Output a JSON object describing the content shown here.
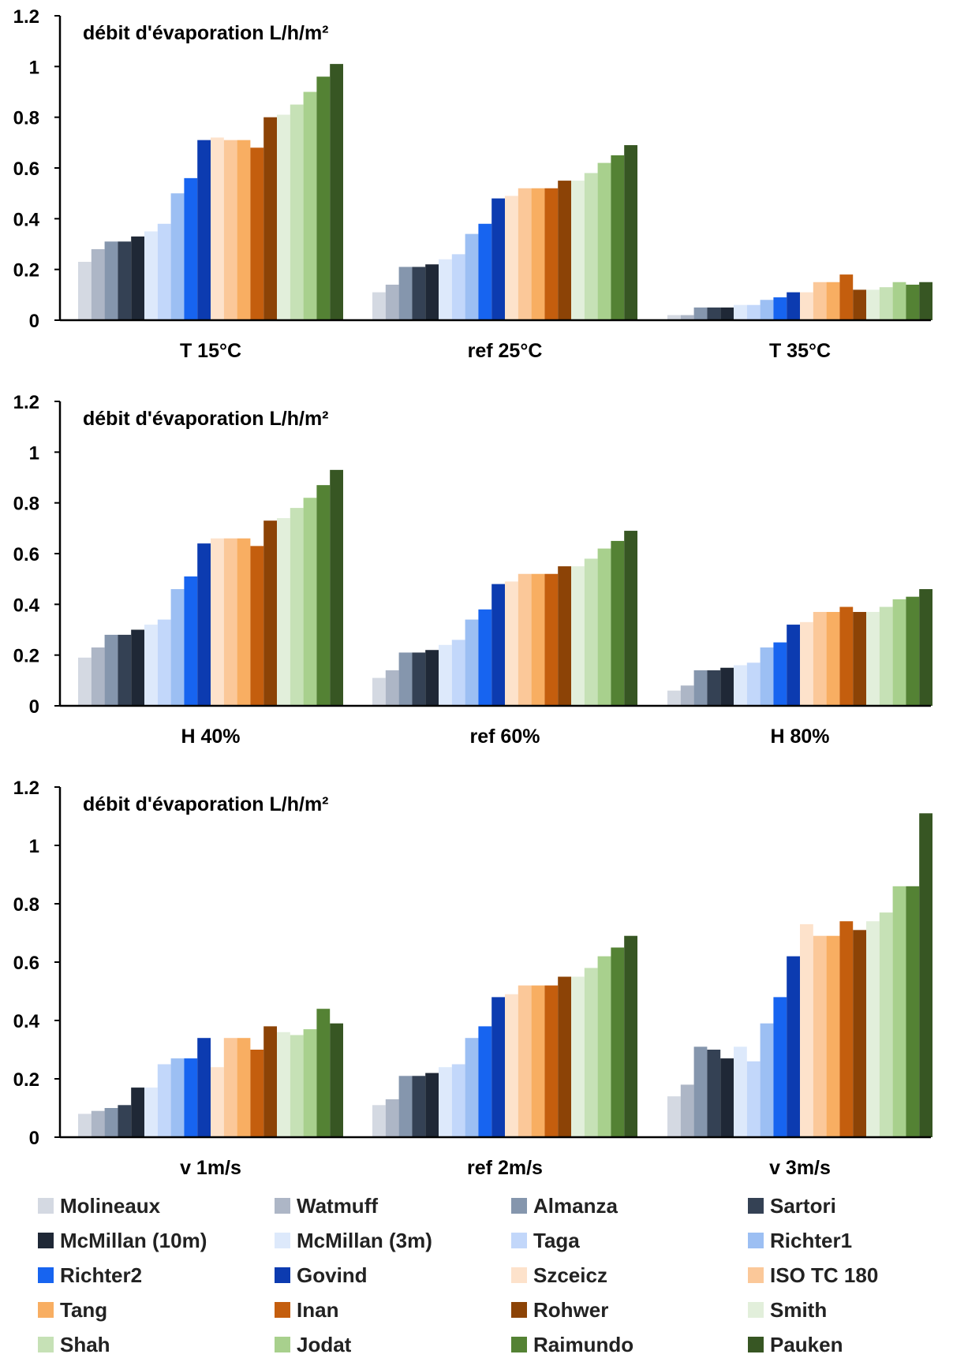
{
  "legend_series": [
    {
      "name": "Molineaux",
      "color": "#d4d9e2"
    },
    {
      "name": "Watmuff",
      "color": "#adb6c6"
    },
    {
      "name": "Almanza",
      "color": "#8596ad"
    },
    {
      "name": "Sartori",
      "color": "#344154"
    },
    {
      "name": "McMillan (10m)",
      "color": "#1f2836"
    },
    {
      "name": "McMillan (3m)",
      "color": "#dde9fb"
    },
    {
      "name": "Taga",
      "color": "#c2d7fa"
    },
    {
      "name": "Richter1",
      "color": "#9cbff3"
    },
    {
      "name": "Richter2",
      "color": "#1764f0"
    },
    {
      "name": "Govind",
      "color": "#0c3bb0"
    },
    {
      "name": "Szceicz",
      "color": "#fde2cb"
    },
    {
      "name": "ISO TC 180",
      "color": "#fbc899"
    },
    {
      "name": "Tang",
      "color": "#f8ae62"
    },
    {
      "name": "Inan",
      "color": "#c45e0e"
    },
    {
      "name": "Rohwer",
      "color": "#8c4306"
    },
    {
      "name": "Smith",
      "color": "#e2efdb"
    },
    {
      "name": "Shah",
      "color": "#c6e1b6"
    },
    {
      "name": "Jodat",
      "color": "#a8d08d"
    },
    {
      "name": "Raimundo",
      "color": "#548234"
    },
    {
      "name": "Pauken",
      "color": "#375623"
    }
  ],
  "chart_data": [
    {
      "type": "bar",
      "title": "débit d'évaporation L/h/m²",
      "categories": [
        "T 15°C",
        "ref 25°C",
        "T 35°C"
      ],
      "ylim": [
        0,
        1.2
      ],
      "yticks": [
        "0",
        "0.2",
        "0.4",
        "0.6",
        "0.8",
        "1",
        "1.2"
      ],
      "grid": false,
      "values_by_category": [
        [
          0.23,
          0.28,
          0.31,
          0.31,
          0.33,
          0.35,
          0.38,
          0.5,
          0.56,
          0.71,
          0.72,
          0.71,
          0.71,
          0.68,
          0.8,
          0.81,
          0.85,
          0.9,
          0.96,
          1.01
        ],
        [
          0.11,
          0.14,
          0.21,
          0.21,
          0.22,
          0.24,
          0.26,
          0.34,
          0.38,
          0.48,
          0.49,
          0.52,
          0.52,
          0.52,
          0.55,
          0.55,
          0.58,
          0.62,
          0.65,
          0.69
        ],
        [
          0.02,
          0.02,
          0.05,
          0.05,
          0.05,
          0.06,
          0.06,
          0.08,
          0.09,
          0.11,
          0.11,
          0.15,
          0.15,
          0.18,
          0.12,
          0.12,
          0.13,
          0.15,
          0.14,
          0.15
        ]
      ]
    },
    {
      "type": "bar",
      "title": "débit d'évaporation L/h/m²",
      "categories": [
        "H 40%",
        "ref 60%",
        "H 80%"
      ],
      "ylim": [
        0,
        1.2
      ],
      "yticks": [
        "0",
        "0.2",
        "0.4",
        "0.6",
        "0.8",
        "1",
        "1.2"
      ],
      "grid": false,
      "values_by_category": [
        [
          0.19,
          0.23,
          0.28,
          0.28,
          0.3,
          0.32,
          0.34,
          0.46,
          0.51,
          0.64,
          0.66,
          0.66,
          0.66,
          0.63,
          0.73,
          0.74,
          0.78,
          0.82,
          0.87,
          0.93
        ],
        [
          0.11,
          0.14,
          0.21,
          0.21,
          0.22,
          0.24,
          0.26,
          0.34,
          0.38,
          0.48,
          0.49,
          0.52,
          0.52,
          0.52,
          0.55,
          0.55,
          0.58,
          0.62,
          0.65,
          0.69
        ],
        [
          0.06,
          0.08,
          0.14,
          0.14,
          0.15,
          0.16,
          0.17,
          0.23,
          0.25,
          0.32,
          0.33,
          0.37,
          0.37,
          0.39,
          0.37,
          0.37,
          0.39,
          0.42,
          0.43,
          0.46
        ]
      ]
    },
    {
      "type": "bar",
      "title": "débit d'évaporation L/h/m²",
      "categories": [
        "v 1m/s",
        "ref 2m/s",
        "v 3m/s"
      ],
      "ylim": [
        0,
        1.2
      ],
      "yticks": [
        "0",
        "0.2",
        "0.4",
        "0.6",
        "0.8",
        "1",
        "1.2"
      ],
      "grid": false,
      "values_by_category": [
        [
          0.08,
          0.09,
          0.1,
          0.11,
          0.17,
          0.17,
          0.25,
          0.27,
          0.27,
          0.34,
          0.24,
          0.34,
          0.34,
          0.3,
          0.38,
          0.36,
          0.35,
          0.37,
          0.44,
          0.39
        ],
        [
          0.11,
          0.13,
          0.21,
          0.21,
          0.22,
          0.24,
          0.25,
          0.34,
          0.38,
          0.48,
          0.49,
          0.52,
          0.52,
          0.52,
          0.55,
          0.55,
          0.58,
          0.62,
          0.65,
          0.69
        ],
        [
          0.14,
          0.18,
          0.31,
          0.3,
          0.27,
          0.31,
          0.26,
          0.39,
          0.48,
          0.62,
          0.73,
          0.69,
          0.69,
          0.74,
          0.71,
          0.74,
          0.77,
          0.86,
          0.86,
          1.11
        ]
      ]
    }
  ]
}
